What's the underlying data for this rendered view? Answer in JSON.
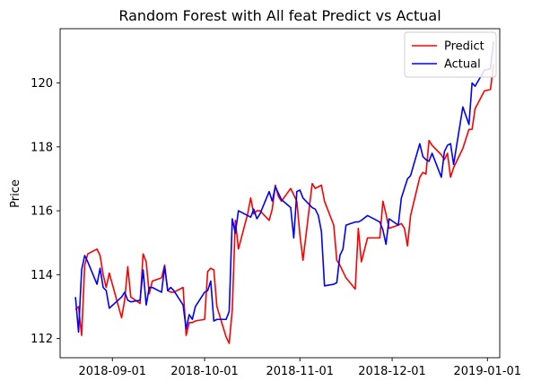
{
  "chart_data": {
    "type": "line",
    "title": "Random Forest with All feat Predict vs Actual",
    "xlabel": "",
    "ylabel": "Price",
    "x_axis_type": "date",
    "xlim": [
      "2018-08-15",
      "2019-01-05"
    ],
    "ylim": [
      111.4,
      121.7
    ],
    "x_ticks": [
      "2018-09-01",
      "2018-10-01",
      "2018-11-01",
      "2018-12-01",
      "2019-01-01"
    ],
    "y_ticks": [
      112,
      114,
      116,
      118,
      120
    ],
    "grid": false,
    "legend_position": "top-right",
    "series": [
      {
        "name": "Predict",
        "color": "#ff0000",
        "points": [
          [
            "2018-08-20",
            112.9
          ],
          [
            "2018-08-21",
            113.0
          ],
          [
            "2018-08-22",
            112.1
          ],
          [
            "2018-08-23",
            114.3
          ],
          [
            "2018-08-24",
            114.65
          ],
          [
            "2018-08-27",
            114.8
          ],
          [
            "2018-08-28",
            114.6
          ],
          [
            "2018-08-29",
            114.0
          ],
          [
            "2018-08-30",
            113.6
          ],
          [
            "2018-08-31",
            114.05
          ],
          [
            "2018-09-04",
            112.65
          ],
          [
            "2018-09-05",
            113.2
          ],
          [
            "2018-09-06",
            114.25
          ],
          [
            "2018-09-07",
            113.3
          ],
          [
            "2018-09-10",
            113.1
          ],
          [
            "2018-09-11",
            114.65
          ],
          [
            "2018-09-12",
            114.4
          ],
          [
            "2018-09-13",
            113.4
          ],
          [
            "2018-09-14",
            113.8
          ],
          [
            "2018-09-17",
            113.9
          ],
          [
            "2018-09-18",
            114.3
          ],
          [
            "2018-09-19",
            113.5
          ],
          [
            "2018-09-20",
            113.45
          ],
          [
            "2018-09-21",
            113.45
          ],
          [
            "2018-09-24",
            113.6
          ],
          [
            "2018-09-25",
            112.1
          ],
          [
            "2018-09-26",
            112.5
          ],
          [
            "2018-09-27",
            112.5
          ],
          [
            "2018-09-28",
            112.55
          ],
          [
            "2018-10-01",
            112.6
          ],
          [
            "2018-10-02",
            114.1
          ],
          [
            "2018-10-03",
            114.2
          ],
          [
            "2018-10-04",
            114.15
          ],
          [
            "2018-10-05",
            113.0
          ],
          [
            "2018-10-08",
            112.05
          ],
          [
            "2018-10-09",
            111.85
          ],
          [
            "2018-10-10",
            112.9
          ],
          [
            "2018-10-11",
            115.7
          ],
          [
            "2018-10-12",
            114.8
          ],
          [
            "2018-10-15",
            115.9
          ],
          [
            "2018-10-16",
            116.4
          ],
          [
            "2018-10-17",
            115.9
          ],
          [
            "2018-10-18",
            116.0
          ],
          [
            "2018-10-19",
            116.0
          ],
          [
            "2018-10-22",
            115.7
          ],
          [
            "2018-10-23",
            116.05
          ],
          [
            "2018-10-24",
            116.8
          ],
          [
            "2018-10-25",
            116.45
          ],
          [
            "2018-10-26",
            116.3
          ],
          [
            "2018-10-29",
            116.7
          ],
          [
            "2018-10-30",
            116.5
          ],
          [
            "2018-10-31",
            116.3
          ],
          [
            "2018-11-01",
            115.25
          ],
          [
            "2018-11-02",
            114.45
          ],
          [
            "2018-11-05",
            116.85
          ],
          [
            "2018-11-06",
            116.7
          ],
          [
            "2018-11-07",
            116.75
          ],
          [
            "2018-11-08",
            116.8
          ],
          [
            "2018-11-09",
            116.3
          ],
          [
            "2018-11-12",
            115.55
          ],
          [
            "2018-11-13",
            114.45
          ],
          [
            "2018-11-14",
            114.3
          ],
          [
            "2018-11-15",
            114.1
          ],
          [
            "2018-11-16",
            113.9
          ],
          [
            "2018-11-19",
            113.55
          ],
          [
            "2018-11-20",
            115.45
          ],
          [
            "2018-11-21",
            114.4
          ],
          [
            "2018-11-23",
            115.15
          ],
          [
            "2018-11-26",
            115.15
          ],
          [
            "2018-11-27",
            115.15
          ],
          [
            "2018-11-28",
            116.3
          ],
          [
            "2018-11-29",
            115.9
          ],
          [
            "2018-11-30",
            115.45
          ],
          [
            "2018-12-03",
            115.55
          ],
          [
            "2018-12-04",
            115.6
          ],
          [
            "2018-12-05",
            115.45
          ],
          [
            "2018-12-06",
            114.9
          ],
          [
            "2018-12-07",
            115.85
          ],
          [
            "2018-12-10",
            117.05
          ],
          [
            "2018-12-11",
            117.2
          ],
          [
            "2018-12-12",
            117.15
          ],
          [
            "2018-12-13",
            118.2
          ],
          [
            "2018-12-14",
            118.05
          ],
          [
            "2018-12-17",
            117.75
          ],
          [
            "2018-12-18",
            117.6
          ],
          [
            "2018-12-19",
            117.8
          ],
          [
            "2018-12-20",
            117.05
          ],
          [
            "2018-12-21",
            117.35
          ],
          [
            "2018-12-24",
            117.95
          ],
          [
            "2018-12-26",
            118.55
          ],
          [
            "2018-12-27",
            118.55
          ],
          [
            "2018-12-28",
            119.2
          ],
          [
            "2018-12-31",
            119.75
          ],
          [
            "2019-01-02",
            119.8
          ],
          [
            "2019-01-03",
            120.6
          ]
        ]
      },
      {
        "name": "Actual",
        "color": "#0000ff",
        "points": [
          [
            "2018-08-20",
            113.3
          ],
          [
            "2018-08-21",
            112.2
          ],
          [
            "2018-08-22",
            114.15
          ],
          [
            "2018-08-23",
            114.6
          ],
          [
            "2018-08-24",
            114.4
          ],
          [
            "2018-08-27",
            113.7
          ],
          [
            "2018-08-28",
            114.2
          ],
          [
            "2018-08-29",
            113.6
          ],
          [
            "2018-08-30",
            113.5
          ],
          [
            "2018-08-31",
            112.95
          ],
          [
            "2018-09-04",
            113.3
          ],
          [
            "2018-09-05",
            113.45
          ],
          [
            "2018-09-06",
            113.2
          ],
          [
            "2018-09-07",
            113.15
          ],
          [
            "2018-09-10",
            113.2
          ],
          [
            "2018-09-11",
            114.15
          ],
          [
            "2018-09-12",
            113.05
          ],
          [
            "2018-09-13",
            113.6
          ],
          [
            "2018-09-14",
            113.6
          ],
          [
            "2018-09-17",
            113.45
          ],
          [
            "2018-09-18",
            114.25
          ],
          [
            "2018-09-19",
            113.5
          ],
          [
            "2018-09-20",
            113.6
          ],
          [
            "2018-09-21",
            113.5
          ],
          [
            "2018-09-24",
            113.05
          ],
          [
            "2018-09-25",
            112.3
          ],
          [
            "2018-09-26",
            112.75
          ],
          [
            "2018-09-27",
            112.6
          ],
          [
            "2018-09-28",
            113.0
          ],
          [
            "2018-10-01",
            113.45
          ],
          [
            "2018-10-02",
            113.5
          ],
          [
            "2018-10-03",
            113.8
          ],
          [
            "2018-10-04",
            112.55
          ],
          [
            "2018-10-05",
            112.6
          ],
          [
            "2018-10-08",
            112.6
          ],
          [
            "2018-10-09",
            112.85
          ],
          [
            "2018-10-10",
            115.75
          ],
          [
            "2018-10-11",
            115.3
          ],
          [
            "2018-10-12",
            116.0
          ],
          [
            "2018-10-15",
            115.85
          ],
          [
            "2018-10-16",
            115.8
          ],
          [
            "2018-10-17",
            116.05
          ],
          [
            "2018-10-18",
            115.75
          ],
          [
            "2018-10-19",
            115.9
          ],
          [
            "2018-10-22",
            116.6
          ],
          [
            "2018-10-23",
            116.3
          ],
          [
            "2018-10-24",
            116.75
          ],
          [
            "2018-10-25",
            116.55
          ],
          [
            "2018-10-26",
            116.35
          ],
          [
            "2018-10-29",
            116.1
          ],
          [
            "2018-10-30",
            115.15
          ],
          [
            "2018-10-31",
            116.6
          ],
          [
            "2018-11-01",
            116.65
          ],
          [
            "2018-11-02",
            116.4
          ],
          [
            "2018-11-05",
            116.1
          ],
          [
            "2018-11-06",
            116.05
          ],
          [
            "2018-11-07",
            115.85
          ],
          [
            "2018-11-08",
            115.35
          ],
          [
            "2018-11-09",
            113.65
          ],
          [
            "2018-11-12",
            113.7
          ],
          [
            "2018-11-13",
            113.75
          ],
          [
            "2018-11-14",
            114.6
          ],
          [
            "2018-11-15",
            114.8
          ],
          [
            "2018-11-16",
            115.55
          ],
          [
            "2018-11-19",
            115.65
          ],
          [
            "2018-11-20",
            115.65
          ],
          [
            "2018-11-21",
            115.7
          ],
          [
            "2018-11-23",
            115.85
          ],
          [
            "2018-11-26",
            115.7
          ],
          [
            "2018-11-27",
            115.65
          ],
          [
            "2018-11-28",
            115.4
          ],
          [
            "2018-11-29",
            114.95
          ],
          [
            "2018-11-30",
            115.75
          ],
          [
            "2018-12-03",
            115.55
          ],
          [
            "2018-12-04",
            116.4
          ],
          [
            "2018-12-05",
            116.7
          ],
          [
            "2018-12-06",
            117.0
          ],
          [
            "2018-12-07",
            117.1
          ],
          [
            "2018-12-10",
            118.1
          ],
          [
            "2018-12-11",
            117.7
          ],
          [
            "2018-12-12",
            117.6
          ],
          [
            "2018-12-13",
            117.55
          ],
          [
            "2018-12-14",
            117.8
          ],
          [
            "2018-12-17",
            117.05
          ],
          [
            "2018-12-18",
            117.85
          ],
          [
            "2018-12-19",
            118.05
          ],
          [
            "2018-12-20",
            118.1
          ],
          [
            "2018-12-21",
            117.45
          ],
          [
            "2018-12-24",
            119.25
          ],
          [
            "2018-12-26",
            118.7
          ],
          [
            "2018-12-27",
            120.0
          ],
          [
            "2018-12-28",
            119.9
          ],
          [
            "2018-12-31",
            120.4
          ],
          [
            "2019-01-02",
            120.45
          ],
          [
            "2019-01-03",
            121.3
          ]
        ]
      }
    ]
  }
}
